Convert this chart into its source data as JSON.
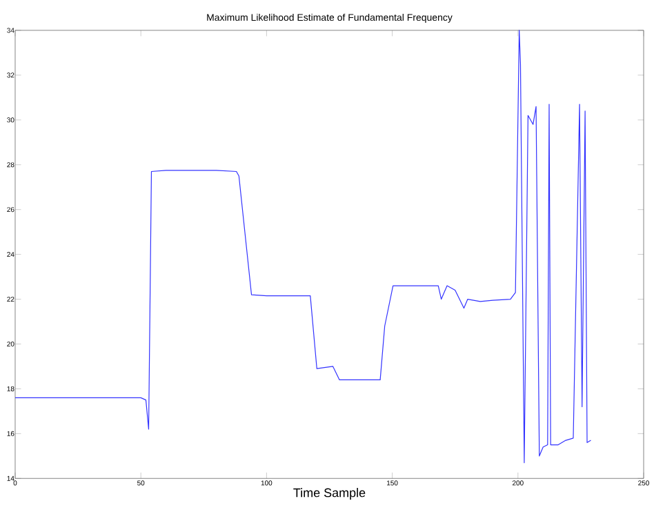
{
  "chart_data": {
    "type": "line",
    "title": "Maximum Likelihood Estimate of Fundamental Frequency",
    "xlabel": "Time Sample",
    "x": [
      0,
      10,
      20,
      30,
      40,
      50,
      52,
      53.1,
      54.2,
      60,
      70,
      80,
      88,
      89,
      94,
      100,
      110,
      117.4,
      120,
      126.4,
      129,
      135,
      145.2,
      147,
      150.3,
      160,
      168.3,
      169.5,
      171.8,
      175,
      178.5,
      180,
      185,
      190,
      197,
      199,
      200.5,
      201,
      202.5,
      204,
      206,
      207.2,
      208.5,
      210,
      211.8,
      212.4,
      213,
      216,
      219,
      222,
      224.5,
      225.5,
      226.7,
      227.5,
      229
    ],
    "series": [
      {
        "color": "#3333ff",
        "values": [
          17.6,
          17.6,
          17.6,
          17.6,
          17.6,
          17.6,
          17.5,
          16.2,
          27.7,
          27.75,
          27.75,
          27.75,
          27.7,
          27.5,
          22.2,
          22.15,
          22.15,
          22.15,
          18.9,
          19.0,
          18.4,
          18.4,
          18.4,
          20.8,
          22.6,
          22.6,
          22.6,
          22.0,
          22.6,
          22.4,
          21.6,
          22.0,
          21.9,
          21.95,
          22.0,
          22.3,
          34,
          32.5,
          14.7,
          30.2,
          29.8,
          30.6,
          15.0,
          15.4,
          15.5,
          30.7,
          15.5,
          15.5,
          15.7,
          15.8,
          30.7,
          17.2,
          30.4,
          15.6,
          15.7
        ]
      }
    ],
    "xlim": [
      0,
      250
    ],
    "ylim": [
      14,
      34
    ],
    "xticks": [
      0,
      50,
      100,
      150,
      200,
      250
    ],
    "yticks": [
      14,
      16,
      18,
      20,
      22,
      24,
      26,
      28,
      30,
      32,
      34
    ],
    "marker": "none",
    "line_style": "solid"
  }
}
